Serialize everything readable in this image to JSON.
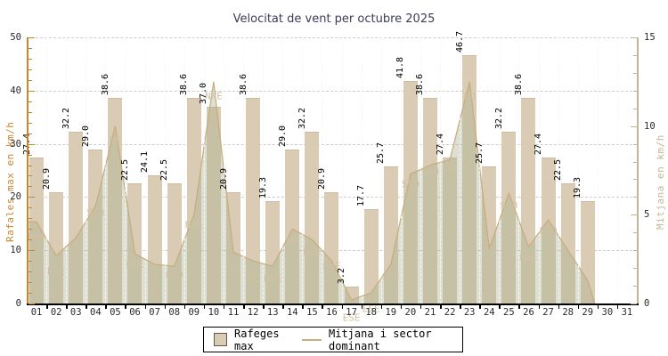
{
  "title": "Velocitat de vent per octubre 2025",
  "axes": {
    "left_label": "Rafales max en km/h",
    "right_label": "Mitjana en km/h",
    "left_ticks": [
      0,
      10,
      20,
      30,
      40,
      50
    ],
    "right_ticks": [
      0,
      5,
      10,
      15
    ],
    "x_tick_labels": [
      "01",
      "02",
      "03",
      "04",
      "05",
      "06",
      "07",
      "08",
      "09",
      "10",
      "11",
      "12",
      "13",
      "14",
      "15",
      "16",
      "17",
      "18",
      "19",
      "20",
      "21",
      "22",
      "23",
      "24",
      "25",
      "26",
      "27",
      "28",
      "29",
      "30",
      "31"
    ]
  },
  "legend": {
    "bar_label": "Rafeges max",
    "line_label": "Mitjana i sector dominant"
  },
  "colors": {
    "bar_fill": "#d9cbb4",
    "bar_edge": "#cbbb9f",
    "line": "#c8ad80",
    "area_fill": "rgba(167,174,141,0.38)",
    "sector_label": "#cfc0a3",
    "left_axis": "#c9862f",
    "right_axis": "#c6b496",
    "grid": "#cdcdcd",
    "title": "#3c3c5a",
    "tick_text": "#2a2a2a"
  },
  "chart_data": {
    "type": "bar",
    "title": "Velocitat de vent per octubre 2025",
    "xlabel": "",
    "ylabel_left": "Rafales max en km/h",
    "ylabel_right": "Mitjana en km/h",
    "ylim_left": [
      0,
      50
    ],
    "ylim_right": [
      0,
      15
    ],
    "x_days": [
      "01",
      "02",
      "03",
      "04",
      "05",
      "06",
      "07",
      "08",
      "09",
      "10",
      "11",
      "12",
      "13",
      "14",
      "15",
      "16",
      "17",
      "18",
      "19",
      "20",
      "21",
      "22",
      "23",
      "24",
      "25",
      "26",
      "27",
      "28",
      "29"
    ],
    "series": [
      {
        "name": "Rafeges max",
        "type": "bar",
        "axis": "left",
        "values": [
          27.4,
          20.9,
          32.2,
          29.0,
          38.6,
          22.5,
          24.1,
          22.5,
          38.6,
          37.0,
          20.9,
          38.6,
          19.3,
          29.0,
          32.2,
          20.9,
          3.2,
          17.7,
          25.7,
          41.8,
          38.6,
          27.4,
          46.7,
          25.7,
          32.2,
          38.6,
          27.4,
          22.5,
          19.3
        ]
      },
      {
        "name": "Mitjana",
        "type": "line",
        "axis": "right",
        "values": [
          4.6,
          2.7,
          3.7,
          5.5,
          10.0,
          2.8,
          2.2,
          2.1,
          5.0,
          12.5,
          2.9,
          2.4,
          2.1,
          4.2,
          3.6,
          2.4,
          0.2,
          0.6,
          2.2,
          7.3,
          7.8,
          8.1,
          12.5,
          3.1,
          6.2,
          3.2,
          4.7,
          3.0,
          1.3
        ]
      },
      {
        "name": "Sector dominant",
        "type": "labels",
        "values": [
          "NNE",
          "NNE",
          "S",
          "SSO",
          "NE",
          "NNE",
          "S",
          "OSO",
          "NNE",
          "NNE",
          "N",
          "N",
          "NNE",
          "NE",
          "NNE",
          "NNE",
          "ESE",
          "ESE",
          "SSE",
          "SSO",
          "SSO",
          "SO",
          "SO",
          "S",
          "SSO",
          "NNE",
          "SSO",
          "S",
          "S"
        ],
        "label_y_right_scale": [
          3.75,
          1.8,
          3.2,
          5.1,
          9.2,
          2.2,
          1.8,
          1.6,
          4.4,
          11.7,
          2.1,
          1.6,
          1.4,
          3.5,
          2.9,
          2.1,
          -0.8,
          -0.3,
          1.5,
          6.7,
          7.4,
          7.7,
          11.7,
          2.3,
          5.5,
          2.6,
          4.1,
          2.3,
          0.7
        ]
      }
    ],
    "legend_position": "bottom-center",
    "grid": "dashed"
  }
}
